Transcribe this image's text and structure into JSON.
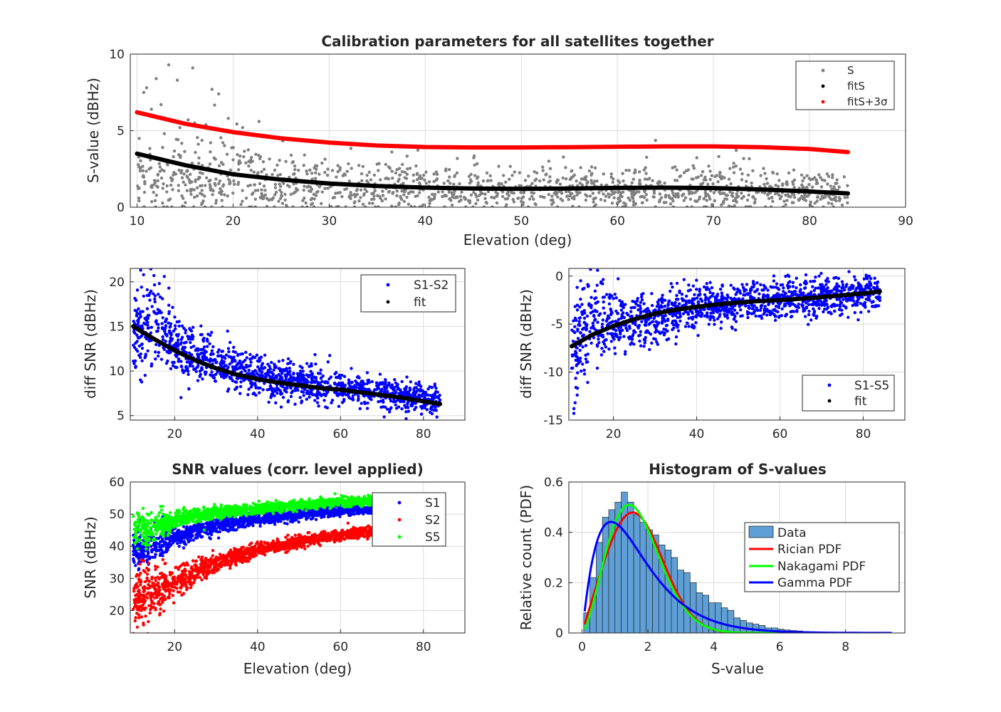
{
  "chart_data": [
    {
      "type": "scatter",
      "title": "Calibration parameters for all satellites together",
      "xlabel": "Elevation (deg)",
      "ylabel": "S-value (dBHz)",
      "xlim": [
        9.3,
        90
      ],
      "ylim": [
        0,
        10
      ],
      "xticks": [
        10,
        20,
        30,
        40,
        50,
        60,
        70,
        80,
        90
      ],
      "yticks": [
        0,
        5,
        10
      ],
      "grid": true,
      "legend_position": "top-right",
      "series": [
        {
          "name": "S",
          "color": "#808080",
          "kind": "scatter",
          "trend": {
            "x": [
              10,
              20,
              30,
              40,
              50,
              60,
              70,
              80,
              84
            ],
            "y": [
              1.8,
              1.7,
              1.25,
              1.1,
              1.1,
              1.15,
              1.1,
              0.95,
              0.9
            ]
          },
          "spread": [
            1.2,
            1.1,
            0.8,
            0.7,
            0.65,
            0.65,
            0.65,
            0.55,
            0.5
          ],
          "outliers": [
            [
              13.3,
              9.3
            ],
            [
              15.8,
              9.1
            ],
            [
              12,
              8.4
            ],
            [
              14.2,
              8.3
            ],
            [
              17.8,
              7.7
            ],
            [
              18.5,
              7.4
            ],
            [
              11,
              7.8
            ],
            [
              10.7,
              7.5
            ],
            [
              12.5,
              6.7
            ],
            [
              11.5,
              6.4
            ],
            [
              21,
              5.2
            ],
            [
              22.7,
              5.6
            ],
            [
              19.5,
              5.8
            ],
            [
              16,
              5.5
            ]
          ]
        },
        {
          "name": "fitS",
          "color": "#000000",
          "kind": "fit",
          "x": [
            10,
            15,
            20,
            25,
            30,
            35,
            40,
            45,
            50,
            55,
            60,
            65,
            70,
            75,
            80,
            84
          ],
          "y": [
            3.5,
            2.75,
            2.15,
            1.8,
            1.55,
            1.38,
            1.28,
            1.22,
            1.2,
            1.22,
            1.26,
            1.28,
            1.25,
            1.16,
            1.03,
            0.9
          ]
        },
        {
          "name": "fitS+3σ",
          "color": "#ff0000",
          "kind": "fit",
          "x": [
            10,
            15,
            20,
            25,
            30,
            35,
            40,
            45,
            50,
            55,
            60,
            65,
            70,
            75,
            80,
            84
          ],
          "y": [
            6.2,
            5.45,
            4.9,
            4.5,
            4.22,
            4.03,
            3.93,
            3.9,
            3.9,
            3.92,
            3.95,
            3.97,
            3.97,
            3.92,
            3.8,
            3.6
          ]
        }
      ]
    },
    {
      "type": "scatter",
      "title": "",
      "xlabel": "",
      "ylabel": "diff SNR (dBHz)",
      "xlim": [
        9.3,
        90
      ],
      "ylim": [
        4.5,
        21.5
      ],
      "xticks": [
        20,
        40,
        60,
        80
      ],
      "yticks": [
        5,
        10,
        15,
        20
      ],
      "grid": true,
      "legend_position": "top-right",
      "series": [
        {
          "name": "S1-S2",
          "color": "#0000ff",
          "kind": "scatter",
          "trend": {
            "x": [
              10,
              15,
              20,
              30,
              40,
              50,
              60,
              70,
              80,
              84
            ],
            "y": [
              14,
              15.5,
              13,
              10.8,
              9.2,
              8.6,
              8.1,
              7.6,
              7,
              6.6
            ]
          },
          "spread": [
            2.4,
            2.8,
            1.9,
            1.3,
            1.1,
            1.0,
            0.9,
            0.9,
            0.8,
            0.8
          ],
          "outliers": [
            [
              11.8,
              21.3
            ],
            [
              12.5,
              20.8
            ],
            [
              15,
              20.7
            ],
            [
              17.5,
              20.6
            ],
            [
              18.6,
              19.3
            ],
            [
              12,
              19.4
            ],
            [
              16.3,
              19.8
            ],
            [
              14,
              18.7
            ]
          ]
        },
        {
          "name": "fit",
          "color": "#000000",
          "kind": "fit",
          "x": [
            10,
            15,
            20,
            25,
            30,
            35,
            40,
            45,
            50,
            55,
            60,
            65,
            70,
            75,
            80,
            84
          ],
          "y": [
            15.0,
            13.6,
            12.3,
            11.2,
            10.3,
            9.6,
            9.1,
            8.7,
            8.4,
            8.1,
            7.9,
            7.6,
            7.3,
            7.0,
            6.6,
            6.3
          ]
        }
      ]
    },
    {
      "type": "scatter",
      "title": "",
      "xlabel": "",
      "ylabel": "diff SNR (dBHz)",
      "xlim": [
        9.3,
        90
      ],
      "ylim": [
        -15,
        0.8
      ],
      "xticks": [
        20,
        40,
        60,
        80
      ],
      "yticks": [
        -15,
        -10,
        -5,
        0
      ],
      "grid": true,
      "legend_position": "bottom-right",
      "series": [
        {
          "name": "S1-S5",
          "color": "#0000ff",
          "kind": "scatter",
          "trend": {
            "x": [
              10,
              15,
              20,
              25,
              30,
              40,
              50,
              60,
              70,
              80,
              84
            ],
            "y": [
              -7.5,
              -4.5,
              -4.6,
              -4.8,
              -4.3,
              -3.3,
              -2.8,
              -2.5,
              -2.2,
              -1.9,
              -1.6
            ]
          },
          "spread": [
            2.6,
            2.2,
            1.6,
            1.4,
            1.3,
            1.1,
            1.0,
            1.0,
            0.9,
            0.9,
            0.8
          ],
          "outliers": [
            [
              10.5,
              -14.3
            ],
            [
              10.8,
              -13.2
            ],
            [
              11.3,
              -12.4
            ],
            [
              11,
              -11.6
            ],
            [
              14.5,
              0.7
            ],
            [
              16.2,
              0.6
            ],
            [
              13,
              -9.8
            ],
            [
              10,
              -9.6
            ]
          ]
        },
        {
          "name": "fit",
          "color": "#000000",
          "kind": "fit",
          "x": [
            10,
            15,
            20,
            25,
            30,
            35,
            40,
            45,
            50,
            55,
            60,
            65,
            70,
            75,
            80,
            84
          ],
          "y": [
            -7.3,
            -6.1,
            -5.2,
            -4.5,
            -3.9,
            -3.5,
            -3.2,
            -2.95,
            -2.75,
            -2.6,
            -2.5,
            -2.35,
            -2.2,
            -2.0,
            -1.8,
            -1.6
          ]
        }
      ]
    },
    {
      "type": "scatter",
      "title": "SNR values (corr. level applied)",
      "xlabel": "Elevation (deg)",
      "ylabel": "SNR (dBHz)",
      "xlim": [
        9.3,
        90
      ],
      "ylim": [
        13,
        60
      ],
      "xticks": [
        20,
        40,
        60,
        80
      ],
      "yticks": [
        20,
        30,
        40,
        50,
        60
      ],
      "grid": true,
      "legend_position": "top-right",
      "series": [
        {
          "name": "S1",
          "color": "#0000ff",
          "kind": "scatter",
          "trend": {
            "x": [
              10,
              15,
              20,
              30,
              40,
              50,
              60,
              68
            ],
            "y": [
              38,
              40.5,
              43,
              46.5,
              48.5,
              50,
              51.2,
              51.5
            ]
          },
          "spread": [
            3.2,
            2.8,
            1.6,
            1.2,
            1.0,
            0.9,
            0.8,
            0.8
          ],
          "outliers": []
        },
        {
          "name": "S2",
          "color": "#ff0000",
          "kind": "scatter",
          "trend": {
            "x": [
              10,
              15,
              20,
              30,
              40,
              50,
              60,
              68
            ],
            "y": [
              23,
              25,
              29,
              35,
              38.8,
              41.5,
              43.5,
              44.7
            ]
          },
          "spread": [
            4.5,
            4.0,
            2.5,
            1.4,
            1.0,
            0.9,
            0.8,
            0.8
          ],
          "outliers": [
            [
              13.5,
              12.8
            ],
            [
              11,
              14.8
            ],
            [
              12.5,
              15.5
            ]
          ]
        },
        {
          "name": "S5",
          "color": "#00ff00",
          "kind": "scatter",
          "trend": {
            "x": [
              10,
              15,
              20,
              30,
              40,
              50,
              60,
              68
            ],
            "y": [
              45,
              45.5,
              48.5,
              50.5,
              51.8,
              52.8,
              53.8,
              54
            ]
          },
          "spread": [
            2.8,
            2.4,
            1.3,
            0.9,
            0.8,
            0.7,
            0.7,
            0.7
          ],
          "outliers": []
        }
      ]
    },
    {
      "type": "bar",
      "title": "Histogram of S-values",
      "xlabel": "S-value",
      "ylabel": "Relative count (PDF)",
      "xlim": [
        -0.4,
        9.8
      ],
      "ylim": [
        0,
        0.6
      ],
      "xticks": [
        0,
        2,
        4,
        6,
        8
      ],
      "yticks": [
        0,
        0.2,
        0.4,
        0.6
      ],
      "grid": true,
      "legend_position": "right",
      "bin_width": 0.19,
      "bin_start": 0.05,
      "values": [
        0.08,
        0.22,
        0.36,
        0.46,
        0.49,
        0.52,
        0.56,
        0.52,
        0.47,
        0.44,
        0.41,
        0.39,
        0.35,
        0.33,
        0.3,
        0.25,
        0.24,
        0.2,
        0.16,
        0.15,
        0.12,
        0.12,
        0.1,
        0.09,
        0.06,
        0.05,
        0.04,
        0.035,
        0.03,
        0.02,
        0.02,
        0.015,
        0.012,
        0.01,
        0.008,
        0.006,
        0.005,
        0.004,
        0.003,
        0.003
      ],
      "series": [
        {
          "name": "Data",
          "color": "#5d9fd6",
          "kind": "bar"
        },
        {
          "name": "Rician PDF",
          "color": "#ff0000",
          "kind": "pdf",
          "dist": "rician",
          "params": {
            "nu": 1.3,
            "sigma": 0.95
          }
        },
        {
          "name": "Nakagami PDF",
          "color": "#00ff00",
          "kind": "pdf",
          "dist": "nakagami",
          "params": {
            "m": 1.25,
            "omega": 3.4
          }
        },
        {
          "name": "Gamma PDF",
          "color": "#0000ff",
          "kind": "pdf",
          "dist": "gamma",
          "params": {
            "k": 2.1,
            "theta": 0.8
          }
        }
      ]
    }
  ]
}
